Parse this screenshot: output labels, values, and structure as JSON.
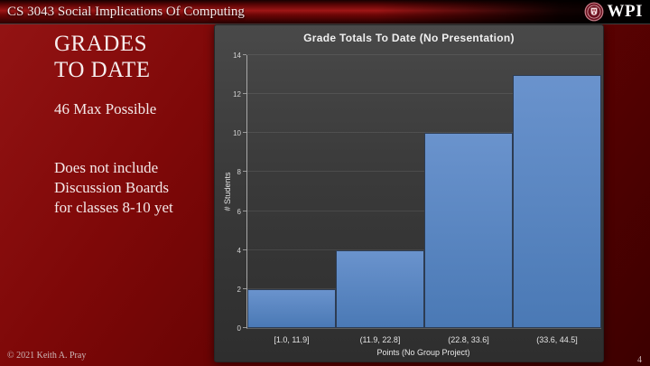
{
  "header": {
    "title": "CS 3043 Social Implications Of Computing",
    "logo_text": "WPI"
  },
  "sidebar": {
    "heading_line1": "GRADES",
    "heading_line2": "TO DATE",
    "subtext": "46 Max Possible",
    "note_lines": [
      "Does not include",
      "Discussion Boards",
      "for classes 8-10 yet"
    ]
  },
  "footer": {
    "copyright": "© 2021 Keith A. Pray",
    "page_number": "4"
  },
  "colors": {
    "brand_red": "#8a0f0f",
    "panel_gray": "#3a3a3a",
    "bar_fill_top": "#6a93cd",
    "bar_fill_bottom": "#4a79b5",
    "bar_border": "#2d3c52"
  },
  "chart_data": {
    "type": "bar",
    "title": "Grade Totals To Date (No Presentation)",
    "categories": [
      "[1.0, 11.9]",
      "(11.9, 22.8]",
      "(22.8, 33.6]",
      "(33.6, 44.5]"
    ],
    "values": [
      2,
      4,
      10,
      13
    ],
    "xlabel": "Points (No Group Project)",
    "ylabel": "# Students",
    "ylim": [
      0,
      14
    ],
    "ytick_step": 2,
    "grid": true,
    "legend": false
  }
}
